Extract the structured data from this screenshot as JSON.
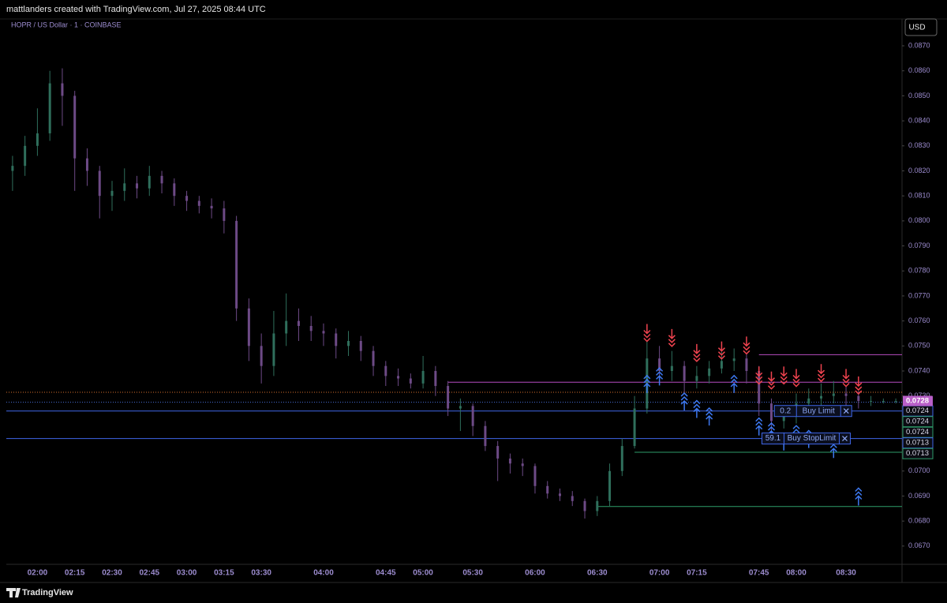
{
  "header": "mattlanders created with TradingView.com, Jul 27, 2025 08:44 UTC",
  "footer": "TradingView",
  "chart_data": {
    "type": "candlestick",
    "title": "HOPR / US Dollar · 1 · COINBASE",
    "currency": "USD",
    "categories": [
      null,
      null,
      "02:00",
      null,
      null,
      "02:15",
      null,
      null,
      "02:30",
      null,
      null,
      "02:45",
      null,
      null,
      "03:00",
      null,
      null,
      "03:15",
      null,
      null,
      "03:30",
      null,
      null,
      null,
      null,
      "04:00",
      null,
      null,
      null,
      null,
      "04:45",
      null,
      null,
      "05:00",
      null,
      null,
      null,
      "05:30",
      null,
      null,
      null,
      null,
      "06:00",
      null,
      null,
      null,
      null,
      "06:30",
      null,
      null,
      null,
      null,
      "07:00",
      null,
      null,
      "07:15",
      null,
      null,
      null,
      null,
      "07:45",
      null,
      null,
      "08:00",
      null,
      null,
      null,
      "08:30",
      null,
      null,
      null,
      null
    ],
    "open": [
      0.082,
      0.0822,
      0.083,
      0.0835,
      0.0855,
      0.085,
      0.0825,
      0.082,
      0.081,
      0.0812,
      0.0815,
      0.0813,
      0.0818,
      0.0815,
      0.081,
      0.0808,
      0.0806,
      0.0805,
      0.08,
      0.0765,
      0.075,
      0.0742,
      0.0755,
      0.076,
      0.0758,
      0.0756,
      0.0755,
      0.075,
      0.0752,
      0.0748,
      0.0742,
      0.0738,
      0.0737,
      0.0735,
      0.074,
      0.0734,
      0.0725,
      0.0726,
      0.0718,
      0.071,
      0.0705,
      0.0703,
      0.0702,
      0.0694,
      0.0691,
      0.069,
      0.0688,
      0.0684,
      0.0688,
      0.07,
      0.071,
      0.0725,
      0.0745,
      0.074,
      0.0742,
      0.0736,
      0.0738,
      0.0741,
      0.0744,
      0.0745,
      0.074,
      0.0727,
      0.072,
      0.0722,
      0.0727,
      0.0729,
      0.073,
      0.0731,
      0.073,
      0.0728,
      0.0728,
      0.0728
    ],
    "high": [
      0.0826,
      0.0834,
      0.0845,
      0.086,
      0.0861,
      0.0852,
      0.0829,
      0.0822,
      0.0816,
      0.0821,
      0.0818,
      0.0822,
      0.082,
      0.0817,
      0.0812,
      0.081,
      0.0809,
      0.0808,
      0.0802,
      0.0769,
      0.0755,
      0.0764,
      0.0771,
      0.0765,
      0.0762,
      0.0759,
      0.0757,
      0.0756,
      0.0754,
      0.075,
      0.0744,
      0.0741,
      0.0739,
      0.0746,
      0.0742,
      0.0736,
      0.0729,
      0.0727,
      0.072,
      0.0712,
      0.0707,
      0.0705,
      0.0703,
      0.0696,
      0.0693,
      0.0692,
      0.0689,
      0.069,
      0.0703,
      0.0713,
      0.073,
      0.0752,
      0.075,
      0.0748,
      0.0744,
      0.0742,
      0.0744,
      0.0748,
      0.0749,
      0.0747,
      0.0742,
      0.0729,
      0.0726,
      0.0731,
      0.0733,
      0.0735,
      0.0736,
      0.0734,
      0.0732,
      0.073,
      0.0729,
      0.0729
    ],
    "low": [
      0.0812,
      0.0818,
      0.0826,
      0.0832,
      0.0838,
      0.0812,
      0.0814,
      0.0801,
      0.0804,
      0.0808,
      0.0809,
      0.081,
      0.0811,
      0.0806,
      0.0804,
      0.0803,
      0.0801,
      0.0795,
      0.076,
      0.0744,
      0.0735,
      0.0738,
      0.075,
      0.0752,
      0.0752,
      0.075,
      0.0745,
      0.0746,
      0.0744,
      0.0738,
      0.0734,
      0.0734,
      0.0733,
      0.0733,
      0.073,
      0.0722,
      0.0716,
      0.0714,
      0.0708,
      0.0696,
      0.0699,
      0.0698,
      0.0691,
      0.0689,
      0.0688,
      0.0686,
      0.0681,
      0.0682,
      0.0686,
      0.0698,
      0.0709,
      0.0723,
      0.0737,
      0.0736,
      0.0731,
      0.0733,
      0.0735,
      0.0739,
      0.074,
      0.0735,
      0.0722,
      0.0716,
      0.0717,
      0.0719,
      0.0724,
      0.0726,
      0.0727,
      0.0726,
      0.0725,
      0.0726,
      0.0727,
      0.0727
    ],
    "close": [
      0.0822,
      0.083,
      0.0835,
      0.0855,
      0.085,
      0.0825,
      0.082,
      0.081,
      0.0812,
      0.0815,
      0.0813,
      0.0818,
      0.0815,
      0.081,
      0.0808,
      0.0806,
      0.0805,
      0.08,
      0.0765,
      0.075,
      0.0742,
      0.0755,
      0.076,
      0.0758,
      0.0756,
      0.0755,
      0.075,
      0.0752,
      0.0748,
      0.0742,
      0.0738,
      0.0737,
      0.0735,
      0.074,
      0.0734,
      0.0725,
      0.0726,
      0.0718,
      0.071,
      0.0705,
      0.0703,
      0.0702,
      0.0694,
      0.0691,
      0.069,
      0.0688,
      0.0684,
      0.0688,
      0.07,
      0.071,
      0.0725,
      0.0745,
      0.074,
      0.0742,
      0.0736,
      0.0738,
      0.0741,
      0.0744,
      0.0745,
      0.074,
      0.0727,
      0.072,
      0.0722,
      0.0727,
      0.0729,
      0.073,
      0.0731,
      0.073,
      0.0728,
      0.0728,
      0.0728,
      0.0728
    ],
    "up_color": "#2f6f5c",
    "down_color": "#6d4a86",
    "ylim": [
      0.06627,
      0.0882
    ],
    "yticks": [
      {
        "value": 0.067,
        "label": "0.0670"
      },
      {
        "value": 0.068,
        "label": "0.0680"
      },
      {
        "value": 0.069,
        "label": "0.0690"
      },
      {
        "value": 0.07,
        "label": "0.0700"
      },
      {
        "value": 0.071,
        "label": "0.0710"
      },
      {
        "value": 0.072,
        "label": "0.0720"
      },
      {
        "value": 0.073,
        "label": "0.0730"
      },
      {
        "value": 0.074,
        "label": "0.0740"
      },
      {
        "value": 0.075,
        "label": "0.0750"
      },
      {
        "value": 0.076,
        "label": "0.0760"
      },
      {
        "value": 0.077,
        "label": "0.0770"
      },
      {
        "value": 0.078,
        "label": "0.0780"
      },
      {
        "value": 0.079,
        "label": "0.0790"
      },
      {
        "value": 0.08,
        "label": "0.0800"
      },
      {
        "value": 0.081,
        "label": "0.0810"
      },
      {
        "value": 0.082,
        "label": "0.0820"
      },
      {
        "value": 0.083,
        "label": "0.0830"
      },
      {
        "value": 0.084,
        "label": "0.0840"
      },
      {
        "value": 0.085,
        "label": "0.0850"
      },
      {
        "value": 0.086,
        "label": "0.0860"
      },
      {
        "value": 0.087,
        "label": "0.0870"
      }
    ],
    "last_price": 0.0728,
    "last_price_color": "#b95fc8",
    "levels": [
      {
        "value": 0.07315,
        "color": "#d9702e",
        "style": "dotted",
        "from": 0
      },
      {
        "value": 0.07275,
        "color": "#4a6fd8",
        "style": "dotted",
        "from": 0
      },
      {
        "value": 0.0724,
        "color": "#3f66e8",
        "style": "solid",
        "from": 0
      },
      {
        "value": 0.0713,
        "color": "#3f66e8",
        "style": "solid",
        "from": 0
      },
      {
        "value": 0.07355,
        "color": "#b64cc0",
        "style": "solid",
        "from": 35
      },
      {
        "value": 0.07465,
        "color": "#b64cc0",
        "style": "solid",
        "from": 60
      },
      {
        "value": 0.07075,
        "color": "#2e9d6a",
        "style": "solid",
        "from": 50
      },
      {
        "value": 0.06858,
        "color": "#2e9d6a",
        "style": "solid",
        "from": 47
      }
    ],
    "axis_labels": [
      {
        "value": 0.0724,
        "color": "#3f66e8"
      },
      {
        "value": 0.0724,
        "color": "#2e9d6a"
      },
      {
        "value": 0.0724,
        "color": "#2e9d6a"
      },
      {
        "value": 0.0713,
        "color": "#3f66e8"
      },
      {
        "value": 0.0713,
        "color": "#2e9d6a"
      }
    ],
    "orders": [
      {
        "qty": 0.2,
        "side": "Buy Limit",
        "price": 0.0724,
        "start": 62
      },
      {
        "qty": 59.1,
        "side": "Buy StopLimit",
        "price": 0.0713,
        "start": 61
      }
    ],
    "sell_signals": {
      "color": "#f0434f",
      "points": [
        [
          51,
          0.0755
        ],
        [
          53,
          0.0753
        ],
        [
          55,
          0.0747
        ],
        [
          57,
          0.0748
        ],
        [
          59,
          0.075
        ],
        [
          60,
          0.0738
        ],
        [
          61,
          0.0736
        ],
        [
          62,
          0.0738
        ],
        [
          63,
          0.0737
        ],
        [
          65,
          0.0739
        ],
        [
          67,
          0.0737
        ],
        [
          68,
          0.0734
        ]
      ]
    },
    "buy_signals": {
      "color": "#3d78f0",
      "points": [
        [
          51,
          0.0735
        ],
        [
          52,
          0.0738
        ],
        [
          54,
          0.0728
        ],
        [
          55,
          0.0725
        ],
        [
          56,
          0.0722
        ],
        [
          58,
          0.0735
        ],
        [
          60,
          0.0718
        ],
        [
          61,
          0.0716
        ],
        [
          62,
          0.0712
        ],
        [
          63,
          0.0715
        ],
        [
          64,
          0.0713
        ],
        [
          66,
          0.0709
        ],
        [
          68,
          0.069
        ]
      ]
    }
  }
}
